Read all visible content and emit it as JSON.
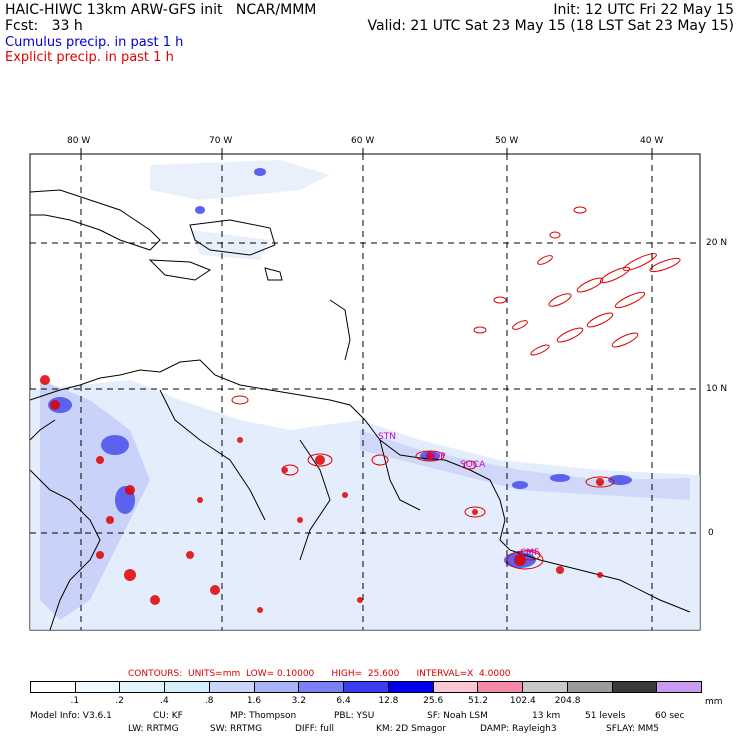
{
  "header": {
    "model_title": "HAIC-HIWC 13km ARW-GFS init   NCAR/MMM",
    "forecast": "Fcst:   33 h",
    "init": "Init: 12 UTC Fri 22 May 15",
    "valid": "Valid: 21 UTC Sat 23 May 15 (18 LST Sat 23 May 15)"
  },
  "legend": {
    "cumulus": "Cumulus precip. in past 1 h",
    "explicit": "Explicit precip. in past 1 h",
    "cumulus_color": "#0000ee",
    "explicit_color": "#e00000"
  },
  "map": {
    "lon_labels": [
      "80 W",
      "70 W",
      "60 W",
      "50 W",
      "40 W"
    ],
    "lat_labels": [
      "20 N",
      "10 N",
      "0"
    ],
    "stations": [
      "STN",
      "SUP",
      "SOCA",
      "CMF"
    ]
  },
  "contours_line": "CONTOURS:  UNITS=mm  LOW= 0.10000      HIGH=  25.600      INTERVAL=X  4.0000",
  "colorbar": {
    "labels": [
      ".1",
      ".2",
      ".4",
      ".8",
      "1.6",
      "3.2",
      "6.4",
      "12.8",
      "25.6",
      "51.2",
      "102.4",
      "204.8"
    ],
    "unit": "mm",
    "colors": [
      "#ffffff",
      "#f0fbff",
      "#dff4fb",
      "#d2eefa",
      "#c9d6fb",
      "#a8b4f7",
      "#7a80f3",
      "#3a3cf0",
      "#0000ee",
      "#f8c8d2",
      "#f48aa6",
      "#c8c8c8",
      "#9a9a9a",
      "#3a3a3a",
      "#c89af2"
    ]
  },
  "model_info": {
    "line1": [
      "Model Info: V3.6.1",
      "CU: KF",
      "MP: Thompson",
      "PBL: YSU",
      "SF: Noah LSM",
      "13 km",
      "51 levels",
      "60 sec"
    ],
    "line2": [
      "LW: RRTMG",
      "SW: RRTMG",
      "DIFF: full",
      "KM: 2D Smagor",
      "DAMP: Rayleigh3",
      "SFLAY: MM5"
    ]
  }
}
